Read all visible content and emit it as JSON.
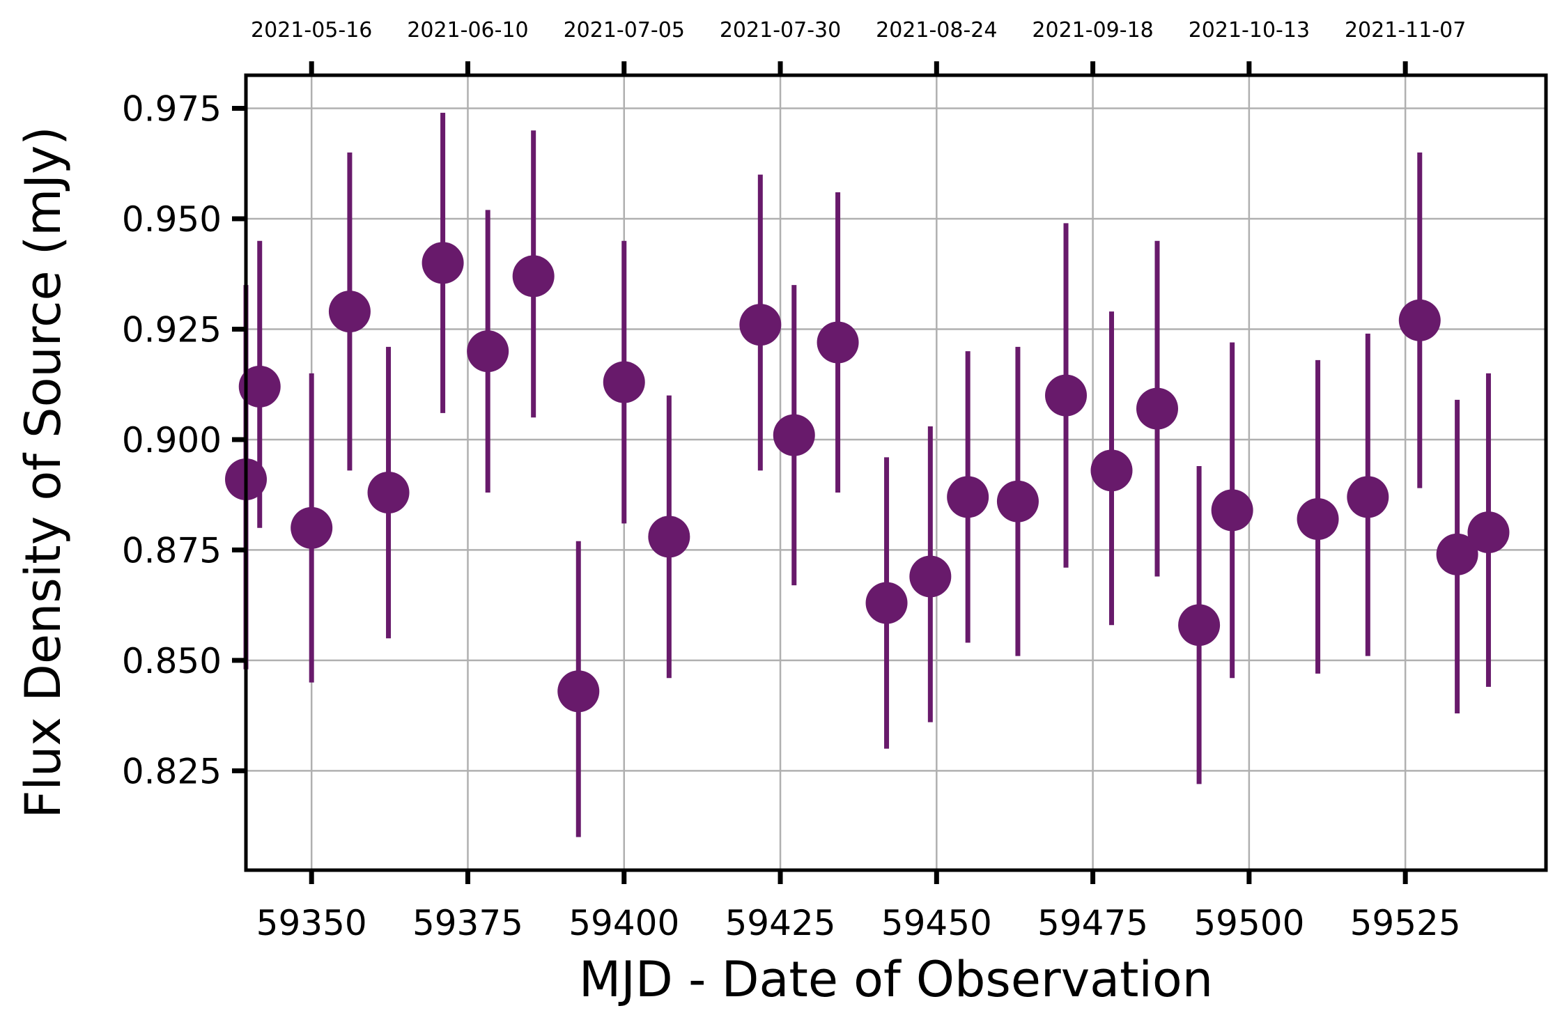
{
  "chart_data": {
    "type": "scatter",
    "title": "",
    "xlabel": "MJD - Date of Observation",
    "ylabel": "Flux Density of Source (mJy)",
    "xlim": [
      59339.5,
      59547.5
    ],
    "ylim": [
      0.8025,
      0.9825
    ],
    "grid": true,
    "legend": "none",
    "marker_color": "#681a6b",
    "x_ticks": [
      59350,
      59375,
      59400,
      59425,
      59450,
      59475,
      59500,
      59525
    ],
    "x_tick_labels": [
      "59350",
      "59375",
      "59400",
      "59425",
      "59450",
      "59475",
      "59500",
      "59525"
    ],
    "y_ticks": [
      0.825,
      0.85,
      0.875,
      0.9,
      0.925,
      0.95,
      0.975
    ],
    "y_tick_labels": [
      "0.825",
      "0.850",
      "0.875",
      "0.900",
      "0.925",
      "0.950",
      "0.975"
    ],
    "top_x_ticks": [
      59350,
      59375,
      59400,
      59425,
      59450,
      59475,
      59500,
      59525
    ],
    "top_x_tick_labels": [
      "2021-05-16",
      "2021-06-10",
      "2021-07-05",
      "2021-07-30",
      "2021-08-24",
      "2021-09-18",
      "2021-10-13",
      "2021-11-07"
    ],
    "points": [
      {
        "x": 59339.5,
        "y": 0.891,
        "yerr_low": 0.848,
        "yerr_high": 0.935
      },
      {
        "x": 59341.7,
        "y": 0.912,
        "yerr_low": 0.88,
        "yerr_high": 0.945
      },
      {
        "x": 59350.0,
        "y": 0.88,
        "yerr_low": 0.845,
        "yerr_high": 0.915
      },
      {
        "x": 59356.1,
        "y": 0.929,
        "yerr_low": 0.893,
        "yerr_high": 0.965
      },
      {
        "x": 59362.3,
        "y": 0.888,
        "yerr_low": 0.855,
        "yerr_high": 0.921
      },
      {
        "x": 59371.0,
        "y": 0.94,
        "yerr_low": 0.906,
        "yerr_high": 0.974
      },
      {
        "x": 59378.2,
        "y": 0.92,
        "yerr_low": 0.888,
        "yerr_high": 0.952
      },
      {
        "x": 59385.5,
        "y": 0.937,
        "yerr_low": 0.905,
        "yerr_high": 0.97
      },
      {
        "x": 59392.7,
        "y": 0.843,
        "yerr_low": 0.81,
        "yerr_high": 0.877
      },
      {
        "x": 59400.0,
        "y": 0.913,
        "yerr_low": 0.881,
        "yerr_high": 0.945
      },
      {
        "x": 59407.2,
        "y": 0.878,
        "yerr_low": 0.846,
        "yerr_high": 0.91
      },
      {
        "x": 59421.8,
        "y": 0.926,
        "yerr_low": 0.893,
        "yerr_high": 0.96
      },
      {
        "x": 59427.2,
        "y": 0.901,
        "yerr_low": 0.867,
        "yerr_high": 0.935
      },
      {
        "x": 59434.2,
        "y": 0.922,
        "yerr_low": 0.888,
        "yerr_high": 0.956
      },
      {
        "x": 59442.0,
        "y": 0.863,
        "yerr_low": 0.83,
        "yerr_high": 0.896
      },
      {
        "x": 59449.0,
        "y": 0.869,
        "yerr_low": 0.836,
        "yerr_high": 0.903
      },
      {
        "x": 59455.0,
        "y": 0.887,
        "yerr_low": 0.854,
        "yerr_high": 0.92
      },
      {
        "x": 59463.0,
        "y": 0.886,
        "yerr_low": 0.851,
        "yerr_high": 0.921
      },
      {
        "x": 59470.7,
        "y": 0.91,
        "yerr_low": 0.871,
        "yerr_high": 0.949
      },
      {
        "x": 59478.0,
        "y": 0.893,
        "yerr_low": 0.858,
        "yerr_high": 0.929
      },
      {
        "x": 59485.3,
        "y": 0.907,
        "yerr_low": 0.869,
        "yerr_high": 0.945
      },
      {
        "x": 59492.0,
        "y": 0.858,
        "yerr_low": 0.822,
        "yerr_high": 0.894
      },
      {
        "x": 59497.3,
        "y": 0.884,
        "yerr_low": 0.846,
        "yerr_high": 0.922
      },
      {
        "x": 59511.0,
        "y": 0.882,
        "yerr_low": 0.847,
        "yerr_high": 0.918
      },
      {
        "x": 59519.0,
        "y": 0.887,
        "yerr_low": 0.851,
        "yerr_high": 0.924
      },
      {
        "x": 59527.3,
        "y": 0.927,
        "yerr_low": 0.889,
        "yerr_high": 0.965
      },
      {
        "x": 59533.3,
        "y": 0.874,
        "yerr_low": 0.838,
        "yerr_high": 0.909
      },
      {
        "x": 59538.3,
        "y": 0.879,
        "yerr_low": 0.844,
        "yerr_high": 0.915
      }
    ]
  }
}
